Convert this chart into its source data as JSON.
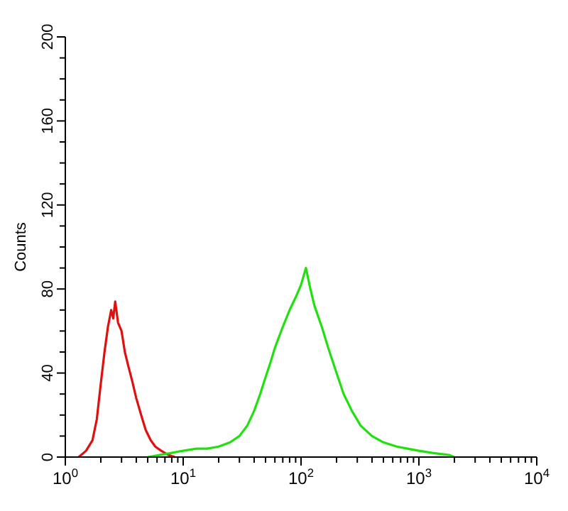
{
  "chart_data": {
    "type": "line",
    "ylabel": "Counts",
    "log": "x",
    "xlim": [
      1,
      10000
    ],
    "ylim": [
      0,
      200
    ],
    "xticks": [
      {
        "value": 1,
        "label": "10$^{0}$"
      },
      {
        "value": 2,
        "label": null
      },
      {
        "value": 3,
        "label": null
      },
      {
        "value": 4,
        "label": null
      },
      {
        "value": 5,
        "label": null
      },
      {
        "value": 6,
        "label": null
      },
      {
        "value": 7,
        "label": null
      },
      {
        "value": 8,
        "label": null
      },
      {
        "value": 9,
        "label": null
      },
      {
        "value": 10,
        "label": "10$^{1}$"
      },
      {
        "value": 20,
        "label": null
      },
      {
        "value": 30,
        "label": null
      },
      {
        "value": 40,
        "label": null
      },
      {
        "value": 50,
        "label": null
      },
      {
        "value": 60,
        "label": null
      },
      {
        "value": 70,
        "label": null
      },
      {
        "value": 80,
        "label": null
      },
      {
        "value": 90,
        "label": null
      },
      {
        "value": 100,
        "label": "10$^{2}$"
      },
      {
        "value": 200,
        "label": null
      },
      {
        "value": 300,
        "label": null
      },
      {
        "value": 400,
        "label": null
      },
      {
        "value": 500,
        "label": null
      },
      {
        "value": 600,
        "label": null
      },
      {
        "value": 700,
        "label": null
      },
      {
        "value": 800,
        "label": null
      },
      {
        "value": 900,
        "label": null
      },
      {
        "value": 1000,
        "label": "10$^{3}$"
      },
      {
        "value": 2000,
        "label": null
      },
      {
        "value": 3000,
        "label": null
      },
      {
        "value": 4000,
        "label": null
      },
      {
        "value": 5000,
        "label": null
      },
      {
        "value": 6000,
        "label": null
      },
      {
        "value": 7000,
        "label": null
      },
      {
        "value": 8000,
        "label": null
      },
      {
        "value": 9000,
        "label": null
      },
      {
        "value": 10000,
        "label": "10$^{4}$"
      }
    ],
    "yticks": [
      0,
      {
        "value": 10,
        "label": null
      },
      {
        "value": 20,
        "label": null
      },
      {
        "value": 30,
        "label": null
      },
      40,
      {
        "value": 50,
        "label": null
      },
      {
        "value": 60,
        "label": null
      },
      {
        "value": 70,
        "label": null
      },
      80,
      {
        "value": 90,
        "label": null
      },
      {
        "value": 100,
        "label": null
      },
      {
        "value": 110,
        "label": null
      },
      120,
      {
        "value": 130,
        "label": null
      },
      {
        "value": 140,
        "label": null
      },
      {
        "value": 150,
        "label": null
      },
      160,
      {
        "value": 170,
        "label": null
      },
      {
        "value": 180,
        "label": null
      },
      {
        "value": 190,
        "label": null
      },
      200
    ],
    "grid": false,
    "marker": "none",
    "line_style": "solid",
    "series": [
      {
        "color": "#e01010",
        "x": [
          1.3,
          1.5,
          1.7,
          1.85,
          2.0,
          2.15,
          2.3,
          2.45,
          2.55,
          2.65,
          2.8,
          3.0,
          3.2,
          3.4,
          3.7,
          4.0,
          4.4,
          4.8,
          5.3,
          5.8,
          6.5,
          7.5,
          8.5
        ],
        "values": [
          0,
          3,
          8,
          18,
          35,
          50,
          62,
          70,
          66,
          74,
          64,
          60,
          50,
          44,
          36,
          28,
          20,
          13,
          8,
          5,
          3,
          1,
          0
        ]
      },
      {
        "color": "#22e010",
        "x": [
          5,
          8,
          10,
          13,
          16,
          20,
          25,
          30,
          35,
          40,
          45,
          50,
          55,
          60,
          70,
          80,
          90,
          100,
          110,
          120,
          130,
          150,
          170,
          200,
          230,
          270,
          320,
          400,
          500,
          650,
          800,
          1000,
          1300,
          1800,
          2000
        ],
        "values": [
          0,
          2,
          3,
          4,
          4,
          5,
          7,
          10,
          15,
          22,
          30,
          38,
          45,
          52,
          62,
          70,
          76,
          82,
          90,
          80,
          72,
          62,
          52,
          40,
          30,
          22,
          15,
          10,
          7,
          5,
          4,
          3,
          2,
          1,
          0
        ]
      }
    ]
  }
}
